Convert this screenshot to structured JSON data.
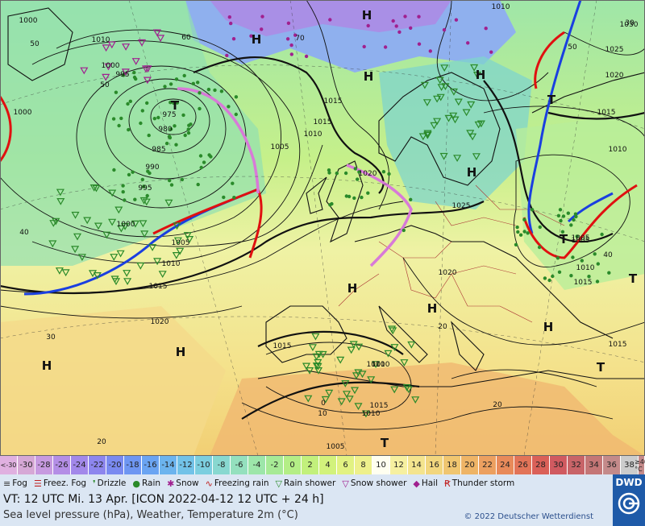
{
  "map": {
    "isobar_labels": [
      {
        "text": "1000"
      },
      {
        "text": "1010"
      },
      {
        "text": "1000"
      },
      {
        "text": "995"
      },
      {
        "text": "975"
      },
      {
        "text": "980"
      },
      {
        "text": "985"
      },
      {
        "text": "990"
      },
      {
        "text": "995"
      },
      {
        "text": "1000"
      },
      {
        "text": "1005"
      },
      {
        "text": "1010"
      },
      {
        "text": "1015"
      },
      {
        "text": "1020"
      },
      {
        "text": "1005"
      },
      {
        "text": "1015"
      },
      {
        "text": "1010"
      },
      {
        "text": "1015"
      },
      {
        "text": "1020"
      },
      {
        "text": "1010"
      },
      {
        "text": "1025"
      },
      {
        "text": "1020"
      },
      {
        "text": "1015"
      },
      {
        "text": "1010"
      },
      {
        "text": "1015"
      },
      {
        "text": "1010"
      },
      {
        "text": "1005"
      },
      {
        "text": "1005"
      },
      {
        "text": "1030"
      },
      {
        "text": "1025"
      },
      {
        "text": "1020"
      },
      {
        "text": "1015"
      },
      {
        "text": "1010"
      },
      {
        "text": "1005"
      },
      {
        "text": "1010"
      },
      {
        "text": "1015"
      },
      {
        "text": "1015"
      },
      {
        "text": "1010"
      },
      {
        "text": "1000"
      }
    ],
    "pressure_centers": [
      {
        "text": "H"
      },
      {
        "text": "H"
      },
      {
        "text": "H"
      },
      {
        "text": "H"
      },
      {
        "text": "H"
      },
      {
        "text": "H"
      },
      {
        "text": "H"
      },
      {
        "text": "H"
      },
      {
        "text": "H"
      },
      {
        "text": "H"
      },
      {
        "text": "T"
      },
      {
        "text": "T"
      },
      {
        "text": "T"
      },
      {
        "text": "T"
      },
      {
        "text": "T"
      },
      {
        "text": "T"
      }
    ],
    "temperature_labels": [
      {
        "text": "50"
      },
      {
        "text": "50"
      },
      {
        "text": "60"
      },
      {
        "text": "70"
      },
      {
        "text": "40"
      },
      {
        "text": "30"
      },
      {
        "text": "20"
      },
      {
        "text": "30"
      },
      {
        "text": "40"
      },
      {
        "text": "50"
      },
      {
        "text": "20"
      },
      {
        "text": "20"
      },
      {
        "text": "10"
      },
      {
        "text": "0"
      }
    ]
  },
  "scale": {
    "colors": [
      "#d6a8d6",
      "#c79ae0",
      "#b48ee6",
      "#a288ea",
      "#8d86ee",
      "#7a8af0",
      "#6e96f2",
      "#6aa4f2",
      "#6cb4ee",
      "#72c2e8",
      "#7ccedf",
      "#88d8d0",
      "#94e0be",
      "#9de6aa",
      "#a7ea96",
      "#b4ee86",
      "#c2f07c",
      "#d2f27c",
      "#e2f282",
      "#eef08c",
      "#fffff0",
      "#f6f0a0",
      "#f4e48e",
      "#f2d67e",
      "#f0c670",
      "#eeb466",
      "#eca060",
      "#e88a5a",
      "#e27458",
      "#da6058",
      "#d05a60",
      "#c86468",
      "#c47676",
      "#c48a8a"
    ],
    "values": [
      "-30",
      "-28",
      "-26",
      "-24",
      "-22",
      "-20",
      "-18",
      "-16",
      "-14",
      "-12",
      "-10",
      "-8",
      "-6",
      "-4",
      "-2",
      "0",
      "2",
      "4",
      "6",
      "8",
      "10",
      "12",
      "14",
      "16",
      "18",
      "20",
      "22",
      "24",
      "26",
      "28",
      "30",
      "32",
      "34",
      "36",
      "38"
    ],
    "min_label": "<-30",
    "max_label": "≥40 °C"
  },
  "legend": {
    "items": [
      {
        "symbol": "≡",
        "label": "Fog",
        "color": "#333333"
      },
      {
        "symbol": "☰",
        "label": "Freez. Fog",
        "color": "#c02020"
      },
      {
        "symbol": "❜",
        "label": "Drizzle",
        "color": "#2a8a2a"
      },
      {
        "symbol": "●",
        "label": "Rain",
        "color": "#2a8a2a"
      },
      {
        "symbol": "✱",
        "label": "Snow",
        "color": "#a0208f"
      },
      {
        "symbol": "∿",
        "label": "Freezing rain",
        "color": "#c02020"
      },
      {
        "symbol": "▽",
        "label": "Rain shower",
        "color": "#2a8a2a"
      },
      {
        "symbol": "▽",
        "label": "Snow shower",
        "color": "#a0208f"
      },
      {
        "symbol": "◆",
        "label": "Hail",
        "color": "#a0208f"
      },
      {
        "symbol": "Ꞧ",
        "label": "Thunder storm",
        "color": "#c02020"
      }
    ]
  },
  "footer": {
    "valid_time": "VT: 12 UTC Mi.   13 Apr. [ICON 2022-04-12  12 UTC + 24 h]",
    "description": "Sea level pressure (hPa), Weather, Temperature 2m (°C)",
    "copyright": "© 2022 Deutscher Wetterdienst",
    "logo_text": "DWD"
  }
}
